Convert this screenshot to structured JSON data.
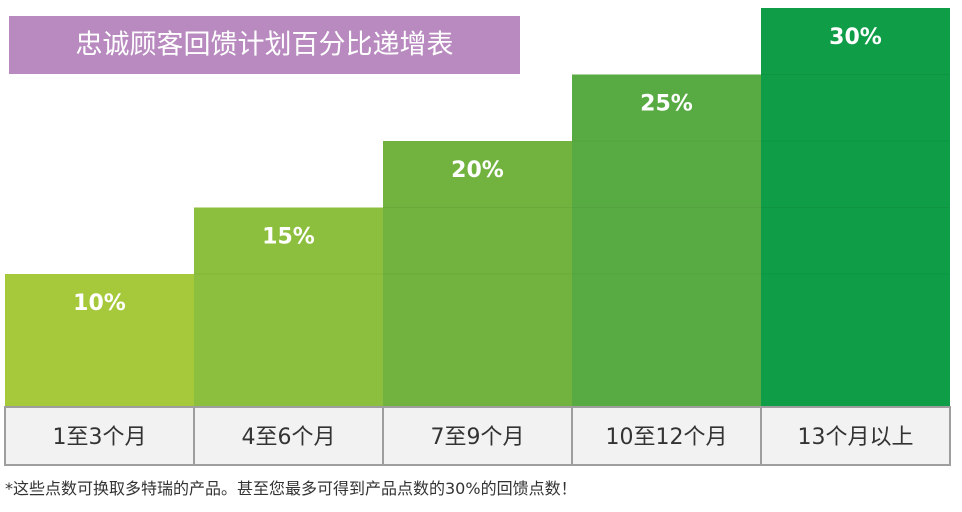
{
  "chart_data": {
    "type": "bar",
    "title": "忠诚顾客回馈计划百分比递增表",
    "categories": [
      "1至3个月",
      "4至6个月",
      "7至9个月",
      "10至12个月",
      "13个月以上"
    ],
    "values": [
      10,
      15,
      20,
      25,
      30
    ],
    "value_labels": [
      "10%",
      "15%",
      "20%",
      "25%",
      "30%"
    ],
    "ylim": [
      0,
      30
    ],
    "grid": false,
    "footnote": "*这些点数可换取多特瑞的产品。甚至您最多可得到产品点数的30%的回馈点数！"
  },
  "colors": {
    "title_bg": "#b88abf",
    "bars": [
      "#a6c93c",
      "#8cbf3d",
      "#72b33f",
      "#58aa43",
      "#0f9d48"
    ],
    "category_row_bg": "#f2f2f2",
    "category_row_border": "#9e9e9e"
  }
}
